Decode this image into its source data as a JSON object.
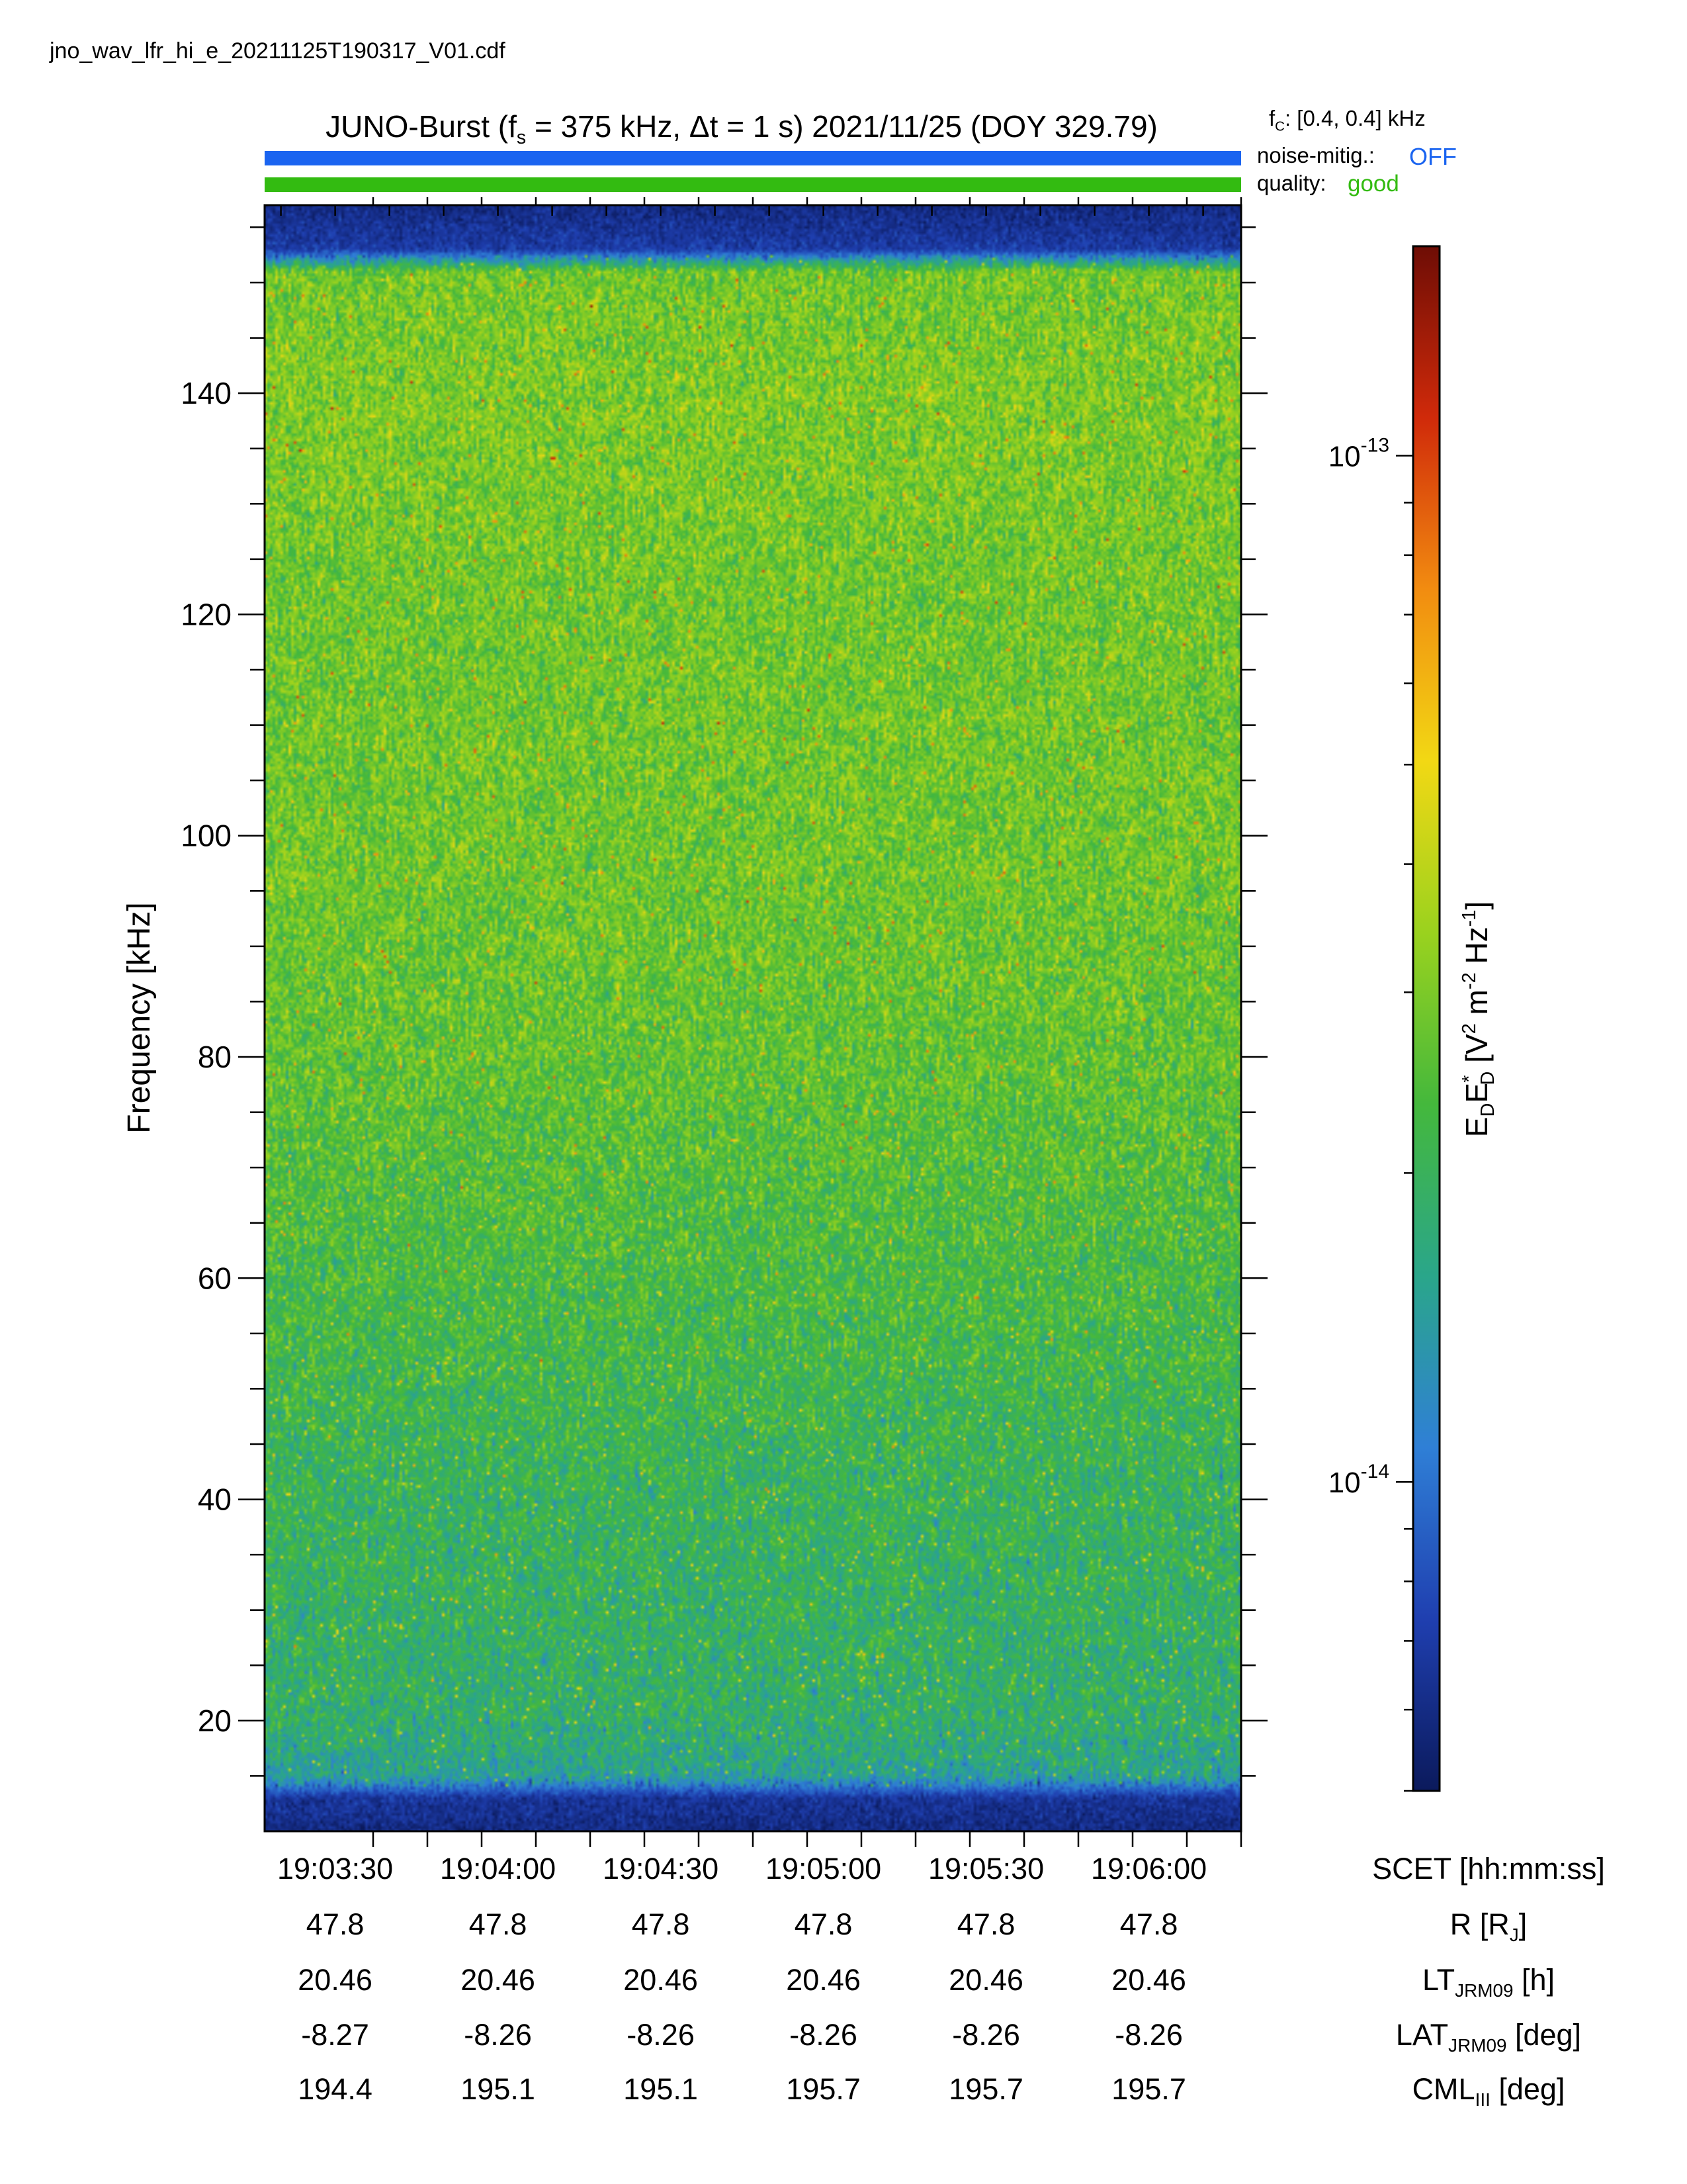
{
  "filename": "jno_wav_lfr_hi_e_20211125T190317_V01.cdf",
  "header": {
    "title_pre": "JUNO-Burst (f",
    "title_sub": "s",
    "title_post": " = 375 kHz, Δt = 1 s)  2021/11/25 (DOY 329.79)",
    "fc_pre": "f",
    "fc_sub": "C",
    "fc_post": ": [0.4, 0.4] kHz",
    "noise_label": "noise-mitig.:",
    "noise_value": "OFF",
    "quality_label": "quality:",
    "quality_value": "good"
  },
  "colors": {
    "noise_bar": "#1a64f0",
    "quality_bar": "#33bb11"
  },
  "chart_data": {
    "type": "heatmap",
    "xlabel": "SCET [hh:mm:ss]",
    "ylabel": "Frequency [kHz]",
    "x_range": [
      "19:03:17",
      "19:06:17"
    ],
    "ylim": [
      10,
      157
    ],
    "y_ticks": [
      20,
      40,
      60,
      80,
      100,
      120,
      140
    ],
    "x_ticks": [
      "19:03:30",
      "19:04:00",
      "19:04:30",
      "19:05:00",
      "19:05:30",
      "19:06:00"
    ],
    "colorbar": {
      "label": "E_D E*_D [V^2 m^-2 Hz^-1]",
      "scale": "log",
      "range": [
        5e-15,
        1.6e-13
      ],
      "ticks": [
        {
          "value": 1e-13,
          "mantissa": "10",
          "exp": "-13"
        },
        {
          "value": 1e-14,
          "mantissa": "10",
          "exp": "-14"
        }
      ],
      "colormap": [
        "#0b1a5c",
        "#1f3fb0",
        "#2f7fd6",
        "#2aa68a",
        "#44b83c",
        "#9ad21e",
        "#f2d814",
        "#f28c10",
        "#d02a0a",
        "#6e0d05"
      ]
    },
    "intensity_profile": [
      {
        "freq": 10,
        "level": 0.05
      },
      {
        "freq": 13,
        "level": 0.08
      },
      {
        "freq": 15,
        "level": 0.32
      },
      {
        "freq": 20,
        "level": 0.38
      },
      {
        "freq": 40,
        "level": 0.4
      },
      {
        "freq": 60,
        "level": 0.44
      },
      {
        "freq": 80,
        "level": 0.48
      },
      {
        "freq": 100,
        "level": 0.5
      },
      {
        "freq": 120,
        "level": 0.5
      },
      {
        "freq": 140,
        "level": 0.52
      },
      {
        "freq": 151,
        "level": 0.5
      },
      {
        "freq": 153,
        "level": 0.1
      },
      {
        "freq": 157,
        "level": 0.05
      }
    ],
    "ephemeris": {
      "rows": [
        {
          "label_main": "SCET [hh:mm:ss]",
          "label_sub": "",
          "label_post": "",
          "values": [
            "19:03:30",
            "19:04:00",
            "19:04:30",
            "19:05:00",
            "19:05:30",
            "19:06:00"
          ]
        },
        {
          "label_main": "R [R",
          "label_sub": "J",
          "label_post": "]",
          "values": [
            "47.8",
            "47.8",
            "47.8",
            "47.8",
            "47.8",
            "47.8"
          ]
        },
        {
          "label_main": "LT",
          "label_sub": "JRM09",
          "label_post": " [h]",
          "values": [
            "20.46",
            "20.46",
            "20.46",
            "20.46",
            "20.46",
            "20.46"
          ]
        },
        {
          "label_main": "LAT",
          "label_sub": "JRM09",
          "label_post": " [deg]",
          "values": [
            "-8.27",
            "-8.26",
            "-8.26",
            "-8.26",
            "-8.26",
            "-8.26"
          ]
        },
        {
          "label_main": "CML",
          "label_sub": "III",
          "label_post": " [deg]",
          "values": [
            "194.4",
            "195.1",
            "195.1",
            "195.7",
            "195.7",
            "195.7"
          ]
        }
      ]
    }
  }
}
